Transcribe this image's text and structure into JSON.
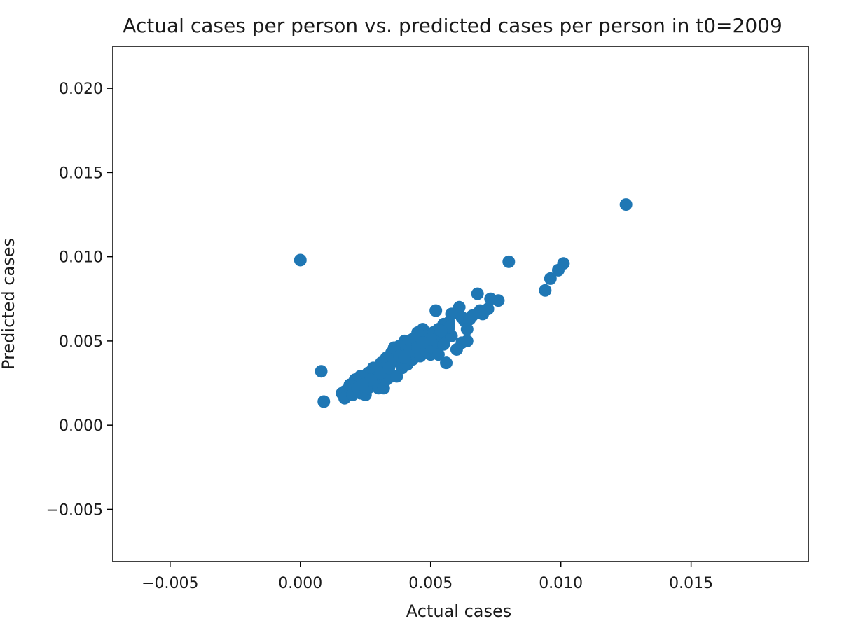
{
  "chart_data": {
    "type": "scatter",
    "title": "Actual cases per person vs. predicted cases per person in t0=2009",
    "xlabel": "Actual cases",
    "ylabel": "Predicted cases",
    "xlim": [
      -0.0072,
      0.0195
    ],
    "ylim": [
      -0.0081,
      0.0225
    ],
    "xticks": [
      -0.005,
      0.0,
      0.005,
      0.01,
      0.015
    ],
    "xtick_labels": [
      "−0.005",
      "0.000",
      "0.005",
      "0.010",
      "0.015"
    ],
    "yticks": [
      -0.005,
      0.0,
      0.005,
      0.01,
      0.015,
      0.02
    ],
    "ytick_labels": [
      "−0.005",
      "0.000",
      "0.005",
      "0.010",
      "0.015",
      "0.020"
    ],
    "grid": false,
    "marker_color": "#1f77b4",
    "points": [
      [
        0.0,
        0.0098
      ],
      [
        0.0125,
        0.0131
      ],
      [
        0.008,
        0.0097
      ],
      [
        0.0101,
        0.0096
      ],
      [
        0.0099,
        0.0092
      ],
      [
        0.0096,
        0.0087
      ],
      [
        0.0094,
        0.008
      ],
      [
        0.0076,
        0.0074
      ],
      [
        0.0073,
        0.0075
      ],
      [
        0.0072,
        0.0069
      ],
      [
        0.0068,
        0.0078
      ],
      [
        0.007,
        0.0066
      ],
      [
        0.0066,
        0.0065
      ],
      [
        0.0063,
        0.0062
      ],
      [
        0.0064,
        0.0057
      ],
      [
        0.0061,
        0.007
      ],
      [
        0.006,
        0.0067
      ],
      [
        0.0058,
        0.0066
      ],
      [
        0.0057,
        0.0061
      ],
      [
        0.0055,
        0.006
      ],
      [
        0.0052,
        0.0068
      ],
      [
        0.0053,
        0.0057
      ],
      [
        0.0056,
        0.0054
      ],
      [
        0.0054,
        0.0052
      ],
      [
        0.0051,
        0.0055
      ],
      [
        0.0049,
        0.005
      ],
      [
        0.0047,
        0.0057
      ],
      [
        0.0048,
        0.0053
      ],
      [
        0.0045,
        0.0055
      ],
      [
        0.0046,
        0.0048
      ],
      [
        0.0043,
        0.0051
      ],
      [
        0.0044,
        0.0047
      ],
      [
        0.0042,
        0.0049
      ],
      [
        0.0041,
        0.0046
      ],
      [
        0.004,
        0.005
      ],
      [
        0.0039,
        0.0044
      ],
      [
        0.0038,
        0.0047
      ],
      [
        0.0037,
        0.0042
      ],
      [
        0.0036,
        0.0046
      ],
      [
        0.0035,
        0.0043
      ],
      [
        0.0034,
        0.0039
      ],
      [
        0.0033,
        0.004
      ],
      [
        0.0032,
        0.0036
      ],
      [
        0.0031,
        0.0037
      ],
      [
        0.003,
        0.0034
      ],
      [
        0.0029,
        0.0032
      ],
      [
        0.0028,
        0.0034
      ],
      [
        0.0027,
        0.003
      ],
      [
        0.0026,
        0.0031
      ],
      [
        0.0025,
        0.0028
      ],
      [
        0.0024,
        0.0026
      ],
      [
        0.0023,
        0.0029
      ],
      [
        0.0022,
        0.0025
      ],
      [
        0.0021,
        0.0027
      ],
      [
        0.002,
        0.0023
      ],
      [
        0.0019,
        0.0024
      ],
      [
        0.0018,
        0.0021
      ],
      [
        0.0017,
        0.002
      ],
      [
        0.0016,
        0.0019
      ],
      [
        0.0017,
        0.0016
      ],
      [
        0.002,
        0.0018
      ],
      [
        0.0023,
        0.0019
      ],
      [
        0.0025,
        0.0018
      ],
      [
        0.0026,
        0.0022
      ],
      [
        0.0028,
        0.0024
      ],
      [
        0.003,
        0.0022
      ],
      [
        0.0032,
        0.0022
      ],
      [
        0.0033,
        0.0027
      ],
      [
        0.0035,
        0.0029
      ],
      [
        0.0037,
        0.0029
      ],
      [
        0.0039,
        0.0034
      ],
      [
        0.0041,
        0.0036
      ],
      [
        0.0043,
        0.0039
      ],
      [
        0.0044,
        0.0042
      ],
      [
        0.0046,
        0.0041
      ],
      [
        0.0048,
        0.0044
      ],
      [
        0.005,
        0.0042
      ],
      [
        0.0051,
        0.0046
      ],
      [
        0.0053,
        0.0042
      ],
      [
        0.0056,
        0.0037
      ],
      [
        0.006,
        0.0045
      ],
      [
        0.0062,
        0.0049
      ],
      [
        0.0064,
        0.005
      ],
      [
        0.0008,
        0.0032
      ],
      [
        0.0009,
        0.0014
      ],
      [
        0.0029,
        0.0028
      ],
      [
        0.0031,
        0.0031
      ],
      [
        0.0036,
        0.0038
      ],
      [
        0.0038,
        0.0041
      ],
      [
        0.0042,
        0.0044
      ],
      [
        0.0045,
        0.0046
      ],
      [
        0.0049,
        0.0047
      ],
      [
        0.0052,
        0.005
      ],
      [
        0.0055,
        0.0048
      ],
      [
        0.0058,
        0.0053
      ],
      [
        0.005,
        0.0051
      ],
      [
        0.0047,
        0.0049
      ],
      [
        0.0034,
        0.0034
      ],
      [
        0.0027,
        0.0027
      ],
      [
        0.0022,
        0.0022
      ],
      [
        0.0024,
        0.0024
      ],
      [
        0.004,
        0.004
      ],
      [
        0.0057,
        0.0058
      ],
      [
        0.0062,
        0.0064
      ],
      [
        0.0065,
        0.0063
      ],
      [
        0.0069,
        0.0068
      ],
      [
        0.0054,
        0.0056
      ]
    ]
  }
}
